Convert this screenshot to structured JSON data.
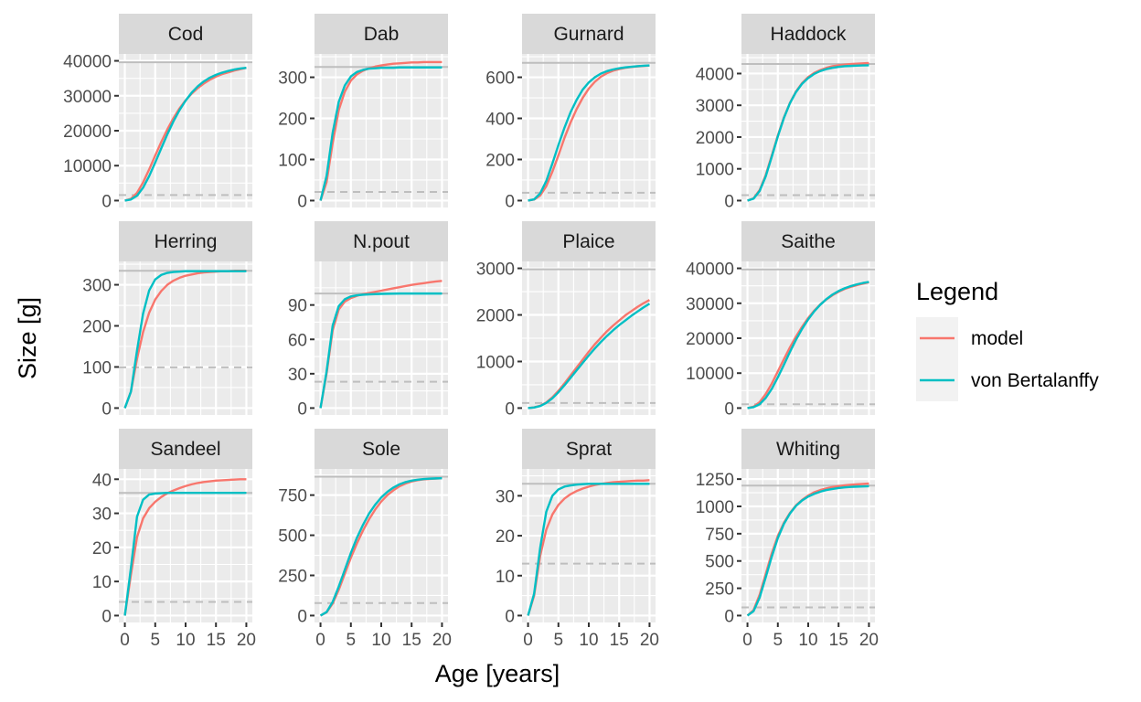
{
  "chart_data": {
    "type": "line",
    "xlabel": "Age [years]",
    "ylabel": "Size [g]",
    "xlim": [
      0,
      20
    ],
    "x_ticks": [
      0,
      5,
      10,
      15,
      20
    ],
    "grid": true,
    "legend": {
      "title": "Legend",
      "placement": "right",
      "entries": [
        {
          "name": "model",
          "color": "#f8766d"
        },
        {
          "name": "von Bertalanffy",
          "color": "#00bfc4"
        }
      ]
    },
    "reference_lines": {
      "solid": "max size",
      "dashed": "maturity size"
    },
    "x": [
      0,
      1,
      2,
      3,
      4,
      5,
      6,
      7,
      8,
      9,
      10,
      11,
      12,
      13,
      14,
      15,
      16,
      17,
      18,
      19,
      20
    ],
    "panels": [
      {
        "name": "Cod",
        "ylim": [
          0,
          40000
        ],
        "y_ticks": [
          0,
          10000,
          20000,
          30000,
          40000
        ],
        "max_line": 39600,
        "mat_line": 1600,
        "series": [
          {
            "name": "model",
            "values": [
              0,
              500,
              2200,
              5200,
              8900,
              12900,
              16800,
              20400,
              23600,
              26400,
              28700,
              30600,
              32200,
              33500,
              34600,
              35500,
              36200,
              36700,
              37200,
              37600,
              38000
            ]
          },
          {
            "name": "von Bertalanffy",
            "values": [
              0,
              300,
              1400,
              3700,
              7000,
              10900,
              15000,
              19000,
              22700,
              25900,
              28600,
              30900,
              32700,
              34100,
              35200,
              36000,
              36600,
              37100,
              37500,
              37800,
              38000
            ]
          }
        ]
      },
      {
        "name": "Dab",
        "ylim": [
          0,
          340
        ],
        "y_ticks": [
          0,
          100,
          200,
          300
        ],
        "max_line": 325,
        "mat_line": 21,
        "series": [
          {
            "name": "model",
            "values": [
              0,
              45,
              140,
              220,
              265,
              292,
              307,
              316,
              322,
              326,
              329,
              331,
              333,
              334,
              335,
              336,
              336,
              337,
              337,
              337,
              337
            ]
          },
          {
            "name": "von Bertalanffy",
            "values": [
              0,
              60,
              165,
              240,
              280,
              302,
              313,
              318,
              321,
              322,
              323,
              323,
              323,
              324,
              324,
              324,
              324,
              324,
              324,
              324,
              324
            ]
          }
        ]
      },
      {
        "name": "Gurnard",
        "ylim": [
          0,
          680
        ],
        "y_ticks": [
          0,
          200,
          400,
          600
        ],
        "max_line": 670,
        "mat_line": 38,
        "series": [
          {
            "name": "model",
            "values": [
              0,
              5,
              25,
              70,
              140,
              220,
              305,
              380,
              445,
              500,
              545,
              578,
              603,
              620,
              632,
              640,
              646,
              650,
              653,
              655,
              657
            ]
          },
          {
            "name": "von Bertalanffy",
            "values": [
              0,
              6,
              35,
              95,
              180,
              270,
              355,
              430,
              490,
              540,
              575,
              600,
              618,
              630,
              638,
              644,
              648,
              651,
              654,
              656,
              658
            ]
          }
        ]
      },
      {
        "name": "Haddock",
        "ylim": [
          0,
          4400
        ],
        "y_ticks": [
          0,
          1000,
          2000,
          3000,
          4000
        ],
        "max_line": 4300,
        "mat_line": 170,
        "series": [
          {
            "name": "model",
            "values": [
              0,
              70,
              330,
              800,
              1420,
              2050,
              2620,
              3080,
              3440,
              3700,
              3890,
              4020,
              4110,
              4180,
              4230,
              4260,
              4280,
              4300,
              4310,
              4320,
              4330
            ]
          },
          {
            "name": "von Bertalanffy",
            "values": [
              0,
              60,
              300,
              760,
              1380,
              2020,
              2600,
              3070,
              3420,
              3680,
              3860,
              3990,
              4080,
              4140,
              4180,
              4210,
              4230,
              4240,
              4250,
              4255,
              4260
            ]
          }
        ]
      },
      {
        "name": "Herring",
        "ylim": [
          0,
          340
        ],
        "y_ticks": [
          0,
          100,
          200,
          300
        ],
        "max_line": 334,
        "mat_line": 99,
        "series": [
          {
            "name": "model",
            "values": [
              0,
              40,
              120,
              185,
              232,
              264,
              285,
              300,
              310,
              317,
              322,
              325,
              328,
              330,
              331,
              332,
              333,
              333,
              334,
              334,
              334
            ]
          },
          {
            "name": "von Bertalanffy",
            "values": [
              0,
              40,
              140,
              230,
              286,
              313,
              324,
              329,
              331,
              332,
              333,
              333,
              333,
              333,
              333,
              333,
              333,
              333,
              333,
              333,
              333
            ]
          }
        ]
      },
      {
        "name": "N.pout",
        "ylim": [
          0,
          122
        ],
        "y_ticks": [
          0,
          30,
          60,
          90
        ],
        "max_line": 100,
        "mat_line": 23,
        "series": [
          {
            "name": "model",
            "values": [
              0,
              30,
              68,
              86,
              93,
              96,
              98,
              99.5,
              100.5,
              101.5,
              102.5,
              103.5,
              104.5,
              105.5,
              106.5,
              107.5,
              108.3,
              109,
              109.8,
              110.5,
              111
            ]
          },
          {
            "name": "von Bertalanffy",
            "values": [
              0,
              32,
              72,
              89,
              95,
              97.5,
              98.5,
              99,
              99.3,
              99.5,
              99.7,
              99.8,
              99.9,
              100,
              100,
              100,
              100,
              100,
              100,
              100,
              100
            ]
          }
        ]
      },
      {
        "name": "Plaice",
        "ylim": [
          0,
          3000
        ],
        "y_ticks": [
          0,
          1000,
          2000,
          3000
        ],
        "max_line": 2980,
        "mat_line": 110,
        "series": [
          {
            "name": "model",
            "values": [
              0,
              15,
              50,
              120,
              230,
              370,
              530,
              700,
              870,
              1040,
              1210,
              1370,
              1510,
              1650,
              1770,
              1880,
              1990,
              2080,
              2170,
              2250,
              2320
            ]
          },
          {
            "name": "von Bertalanffy",
            "values": [
              0,
              12,
              45,
              110,
              210,
              340,
              490,
              650,
              810,
              970,
              1130,
              1280,
              1420,
              1550,
              1670,
              1780,
              1880,
              1980,
              2070,
              2160,
              2240
            ]
          }
        ]
      },
      {
        "name": "Saithe",
        "ylim": [
          0,
          40000
        ],
        "y_ticks": [
          0,
          10000,
          20000,
          30000,
          40000
        ],
        "max_line": 39700,
        "mat_line": 1100,
        "series": [
          {
            "name": "model",
            "values": [
              0,
              400,
              1700,
              4000,
              7000,
              10500,
              14000,
              17400,
              20500,
              23300,
              25800,
              27900,
              29700,
              31100,
              32300,
              33300,
              34100,
              34700,
              35200,
              35600,
              36000
            ]
          },
          {
            "name": "von Bertalanffy",
            "values": [
              0,
              250,
              1100,
              2900,
              5500,
              8800,
              12400,
              16100,
              19600,
              22700,
              25400,
              27700,
              29600,
              31200,
              32500,
              33500,
              34300,
              34900,
              35400,
              35800,
              36100
            ]
          }
        ]
      },
      {
        "name": "Sandeel",
        "ylim": [
          0,
          41
        ],
        "y_ticks": [
          0,
          10,
          20,
          30,
          40
        ],
        "max_line": 36,
        "mat_line": 4,
        "series": [
          {
            "name": "model",
            "values": [
              0,
              12,
              23,
              28.5,
              31.5,
              33.4,
              34.8,
              35.9,
              36.7,
              37.4,
              38,
              38.5,
              38.9,
              39.2,
              39.4,
              39.6,
              39.7,
              39.8,
              39.9,
              40,
              40
            ]
          },
          {
            "name": "von Bertalanffy",
            "values": [
              0,
              14,
              29,
              34,
              35.5,
              35.8,
              35.9,
              36,
              36,
              36,
              36,
              36,
              36,
              36,
              36,
              36,
              36,
              36,
              36,
              36,
              36
            ]
          }
        ]
      },
      {
        "name": "Sole",
        "ylim": [
          0,
          870
        ],
        "y_ticks": [
          0,
          250,
          500,
          750
        ],
        "max_line": 865,
        "mat_line": 78,
        "series": [
          {
            "name": "model",
            "values": [
              0,
              20,
              75,
              160,
              260,
              360,
              450,
              530,
              600,
              660,
              710,
              750,
              780,
              805,
              822,
              835,
              843,
              848,
              851,
              853,
              855
            ]
          },
          {
            "name": "von Bertalanffy",
            "values": [
              0,
              22,
              85,
              180,
              285,
              390,
              485,
              565,
              635,
              690,
              735,
              770,
              797,
              817,
              831,
              840,
              846,
              850,
              852,
              854,
              855
            ]
          }
        ]
      },
      {
        "name": "Sprat",
        "ylim": [
          0,
          35
        ],
        "y_ticks": [
          0,
          10,
          20,
          30
        ],
        "max_line": 33,
        "mat_line": 13,
        "series": [
          {
            "name": "model",
            "values": [
              0,
              5,
              15,
              21.5,
              25.3,
              27.7,
              29.3,
              30.4,
              31.2,
              31.8,
              32.3,
              32.7,
              33,
              33.2,
              33.4,
              33.5,
              33.6,
              33.7,
              33.8,
              33.8,
              33.9
            ]
          },
          {
            "name": "von Bertalanffy",
            "values": [
              0,
              5.5,
              17,
              26,
              30,
              31.6,
              32.3,
              32.6,
              32.8,
              32.9,
              33,
              33,
              33,
              33,
              33,
              33,
              33,
              33,
              33,
              33,
              33
            ]
          }
        ]
      },
      {
        "name": "Whiting",
        "ylim": [
          0,
          1280
        ],
        "y_ticks": [
          0,
          250,
          500,
          750,
          1000,
          1250
        ],
        "max_line": 1190,
        "mat_line": 75,
        "series": [
          {
            "name": "model",
            "values": [
              0,
              50,
              190,
              380,
              570,
              730,
              850,
              940,
              1010,
              1060,
              1100,
              1130,
              1150,
              1165,
              1177,
              1186,
              1193,
              1198,
              1202,
              1206,
              1210
            ]
          },
          {
            "name": "von Bertalanffy",
            "values": [
              0,
              40,
              165,
              350,
              540,
              710,
              840,
              935,
              1005,
              1055,
              1090,
              1115,
              1135,
              1150,
              1160,
              1168,
              1174,
              1178,
              1181,
              1183,
              1185
            ]
          }
        ]
      }
    ]
  }
}
